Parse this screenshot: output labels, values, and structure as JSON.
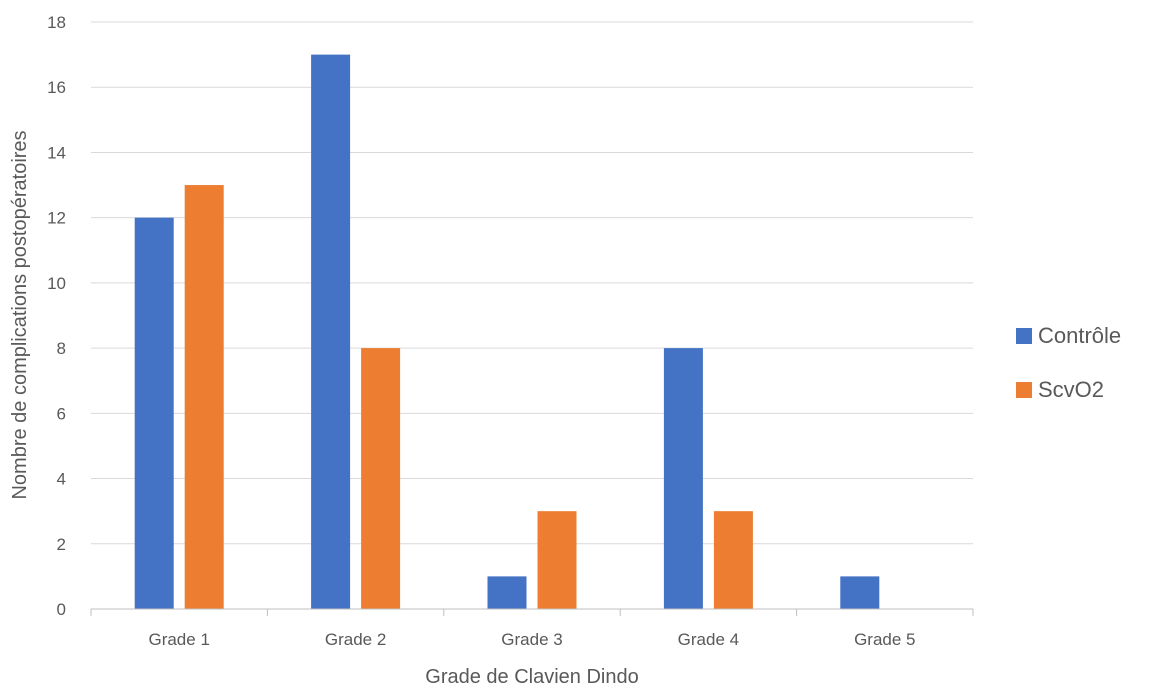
{
  "chart_data": {
    "type": "bar",
    "categories": [
      "Grade 1",
      "Grade 2",
      "Grade 3",
      "Grade 4",
      "Grade 5"
    ],
    "series": [
      {
        "name": "Contrôle",
        "values": [
          12,
          17,
          1,
          8,
          1
        ],
        "color": "#4472C4"
      },
      {
        "name": "ScvO2",
        "values": [
          13,
          8,
          3,
          3,
          0
        ],
        "color": "#ED7D31"
      }
    ],
    "xlabel": "Grade de Clavien Dindo",
    "ylabel": "Nombre de complications postopératoires",
    "ylim": [
      0,
      18
    ],
    "yticks": [
      0,
      2,
      4,
      6,
      8,
      10,
      12,
      14,
      16,
      18
    ],
    "grid": true,
    "legend_position": "right",
    "colors": {
      "grid": "#D9D9D9",
      "axis": "#BFBFBF",
      "text": "#595959"
    }
  }
}
